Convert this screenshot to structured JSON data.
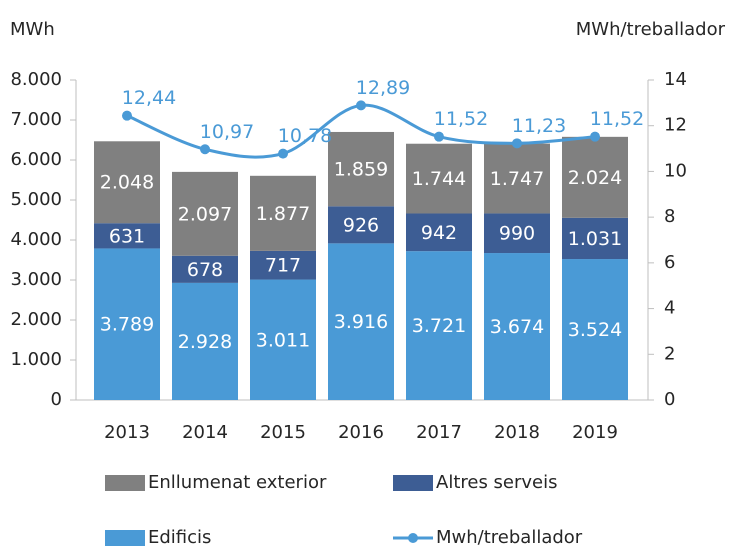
{
  "chart_data": {
    "type": "bar_line",
    "y_label": "MWh",
    "y2_label": "MWh/treballador",
    "categories": [
      "2013",
      "2014",
      "2015",
      "2016",
      "2017",
      "2018",
      "2019"
    ],
    "series": [
      {
        "name": "Edificis",
        "color": "#4a9ad6",
        "values": [
          3789,
          2928,
          3011,
          3916,
          3721,
          3674,
          3524
        ],
        "value_labels": [
          "3.789",
          "2.928",
          "3.011",
          "3.916",
          "3.721",
          "3.674",
          "3.524"
        ]
      },
      {
        "name": "Altres serveis",
        "color": "#3d5d94",
        "values": [
          631,
          678,
          717,
          926,
          942,
          990,
          1031
        ],
        "value_labels": [
          "631",
          "678",
          "717",
          "926",
          "942",
          "990",
          "1.031"
        ]
      },
      {
        "name": "Enllumenat exterior",
        "color": "#808080",
        "values": [
          2048,
          2097,
          1877,
          1859,
          1744,
          1747,
          2024
        ],
        "value_labels": [
          "2.048",
          "2.097",
          "1.877",
          "1.859",
          "1.744",
          "1.747",
          "2.024"
        ]
      },
      {
        "name": "Mwh/treballador",
        "color": "#4a9ad6",
        "axis": "y2",
        "values": [
          12.44,
          10.97,
          10.78,
          12.89,
          11.52,
          11.23,
          11.52
        ],
        "value_labels": [
          "12,44",
          "10,97",
          "10,78",
          "12,89",
          "11,52",
          "11,23",
          "11,52"
        ]
      }
    ],
    "ylim": [
      0,
      8000
    ],
    "yticks": [
      0,
      {
        "value": 1000,
        "label": "1.000"
      },
      {
        "value": 2000,
        "label": "2.000"
      },
      {
        "value": 3000,
        "label": "3.000"
      },
      {
        "value": 4000,
        "label": "4.000"
      },
      {
        "value": 5000,
        "label": "5.000"
      },
      {
        "value": 6000,
        "label": "6.000"
      },
      {
        "value": 7000,
        "label": "7.000"
      },
      {
        "value": 8000,
        "label": "8.000"
      }
    ],
    "y2lim": [
      0,
      14
    ],
    "y2ticks": [
      0,
      2,
      4,
      6,
      8,
      10,
      12,
      14
    ],
    "grid": false,
    "legend": "bottom"
  }
}
